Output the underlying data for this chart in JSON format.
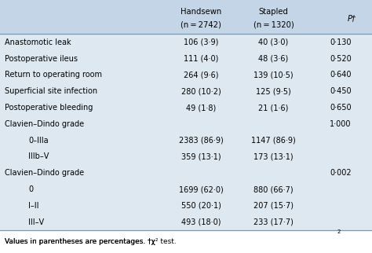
{
  "header_bg": "#c5d5e8",
  "body_bg": "#dde8f0",
  "col_headers_line1": [
    "Handsewn",
    "Stapled",
    ""
  ],
  "col_headers_line2": [
    "(n = 2742)",
    "(n = 1320)",
    "P†"
  ],
  "rows": [
    {
      "label": "Anastomotic leak",
      "indent": false,
      "handsewn": "106 (3·9)",
      "stapled": "40 (3·0)",
      "p": "0·130"
    },
    {
      "label": "Postoperative ileus",
      "indent": false,
      "handsewn": "111 (4·0)",
      "stapled": "48 (3·6)",
      "p": "0·520"
    },
    {
      "label": "Return to operating room",
      "indent": false,
      "handsewn": "264 (9·6)",
      "stapled": "139 (10·5)",
      "p": "0·640"
    },
    {
      "label": "Superficial site infection",
      "indent": false,
      "handsewn": "280 (10·2)",
      "stapled": "125 (9·5)",
      "p": "0·450"
    },
    {
      "label": "Postoperative bleeding",
      "indent": false,
      "handsewn": "49 (1·8)",
      "stapled": "21 (1·6)",
      "p": "0·650"
    },
    {
      "label": "Clavien–Dindo grade",
      "indent": false,
      "handsewn": "",
      "stapled": "",
      "p": "1·000"
    },
    {
      "label": "0–IIIa",
      "indent": true,
      "handsewn": "2383 (86·9)",
      "stapled": "1147 (86·9)",
      "p": ""
    },
    {
      "label": "IIIb–V",
      "indent": true,
      "handsewn": "359 (13·1)",
      "stapled": "173 (13·1)",
      "p": ""
    },
    {
      "label": "Clavien–Dindo grade",
      "indent": false,
      "handsewn": "",
      "stapled": "",
      "p": "0·002"
    },
    {
      "label": "0",
      "indent": true,
      "handsewn": "1699 (62·0)",
      "stapled": "880 (66·7)",
      "p": ""
    },
    {
      "label": "I–II",
      "indent": true,
      "handsewn": "550 (20·1)",
      "stapled": "207 (15·7)",
      "p": ""
    },
    {
      "label": "III–V",
      "indent": true,
      "handsewn": "493 (18·0)",
      "stapled": "233 (17·7)",
      "p": ""
    }
  ],
  "footnote_parts": [
    {
      "text": "Values in parentheses are percentages. †χ",
      "style": "normal"
    },
    {
      "text": "2",
      "style": "super"
    },
    {
      "text": " test.",
      "style": "normal"
    }
  ],
  "font_size": 7.0,
  "header_font_size": 7.2
}
